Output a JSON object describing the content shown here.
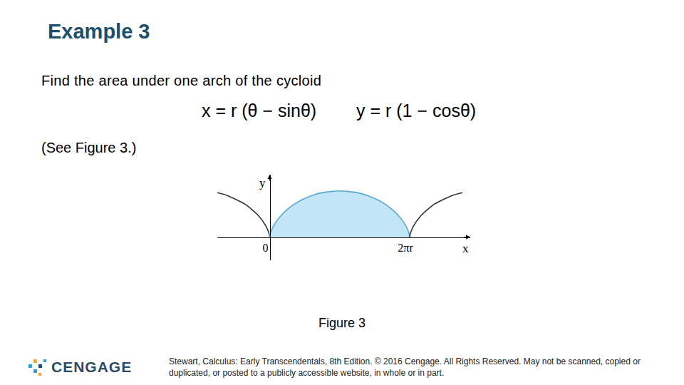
{
  "slide": {
    "title": "Example 3",
    "intro": "Find the area under one arch of the cycloid",
    "equations": [
      "x = r (θ − sinθ)",
      "y = r (1 − cosθ)"
    ],
    "reference": "(See Figure 3.)",
    "caption": "Figure 3",
    "footer": "Stewart, Calculus: Early Transcendentals, 8th Edition. © 2016 Cengage. All Rights Reserved. May not be scanned, copied or duplicated, or posted to a publicly accessible website, in whole or in part.",
    "logo": "CENGAGE"
  },
  "chart_data": {
    "type": "line",
    "xlabel": "x",
    "ylabel": "y",
    "xlim": [
      -2.35,
      9.0
    ],
    "ylim": [
      -1.0,
      2.7
    ],
    "xticks": [
      0,
      {
        "value": 6.2832,
        "label": "2πr"
      }
    ],
    "yticks": [],
    "tick_labels": "x",
    "grid": false,
    "series": [
      {
        "type": "line",
        "color": "#333333",
        "x": [
          -2.368,
          -1.9015,
          -1.0907,
          -0.5025,
          -0.1585,
          -0.0206,
          0
        ],
        "values": [
          1.9243,
          1.8011,
          1.4161,
          0.9293,
          0.4597,
          0.1224,
          0
        ]
      },
      {
        "type": "area",
        "color": "#5aa7cf",
        "x": [
          0,
          0.0026,
          0.0206,
          0.0684,
          0.1585,
          0.301,
          0.5025,
          0.766,
          1.0907,
          1.4719,
          1.9015,
          2.368,
          3.1416,
          3.9152,
          4.3817,
          4.8113,
          5.1925,
          5.5172,
          5.7807,
          5.9822,
          6.1247,
          6.2148,
          6.2626,
          6.2806,
          6.2832
        ],
        "values": [
          0,
          0.0311,
          0.1224,
          0.2683,
          0.4597,
          0.6847,
          0.9293,
          1.1782,
          1.4161,
          1.6282,
          1.8011,
          1.9243,
          2,
          1.9243,
          1.8011,
          1.6282,
          1.4161,
          1.1782,
          0.9293,
          0.6847,
          0.4597,
          0.2683,
          0.1224,
          0.0311,
          0
        ]
      },
      {
        "type": "line",
        "color": "#333333",
        "x": [
          6.2832,
          6.3038,
          6.4417,
          6.7857,
          7.3739,
          8.1847,
          8.6512
        ],
        "values": [
          0,
          0.1224,
          0.4597,
          0.9293,
          1.4161,
          1.8011,
          1.9243
        ]
      }
    ]
  }
}
